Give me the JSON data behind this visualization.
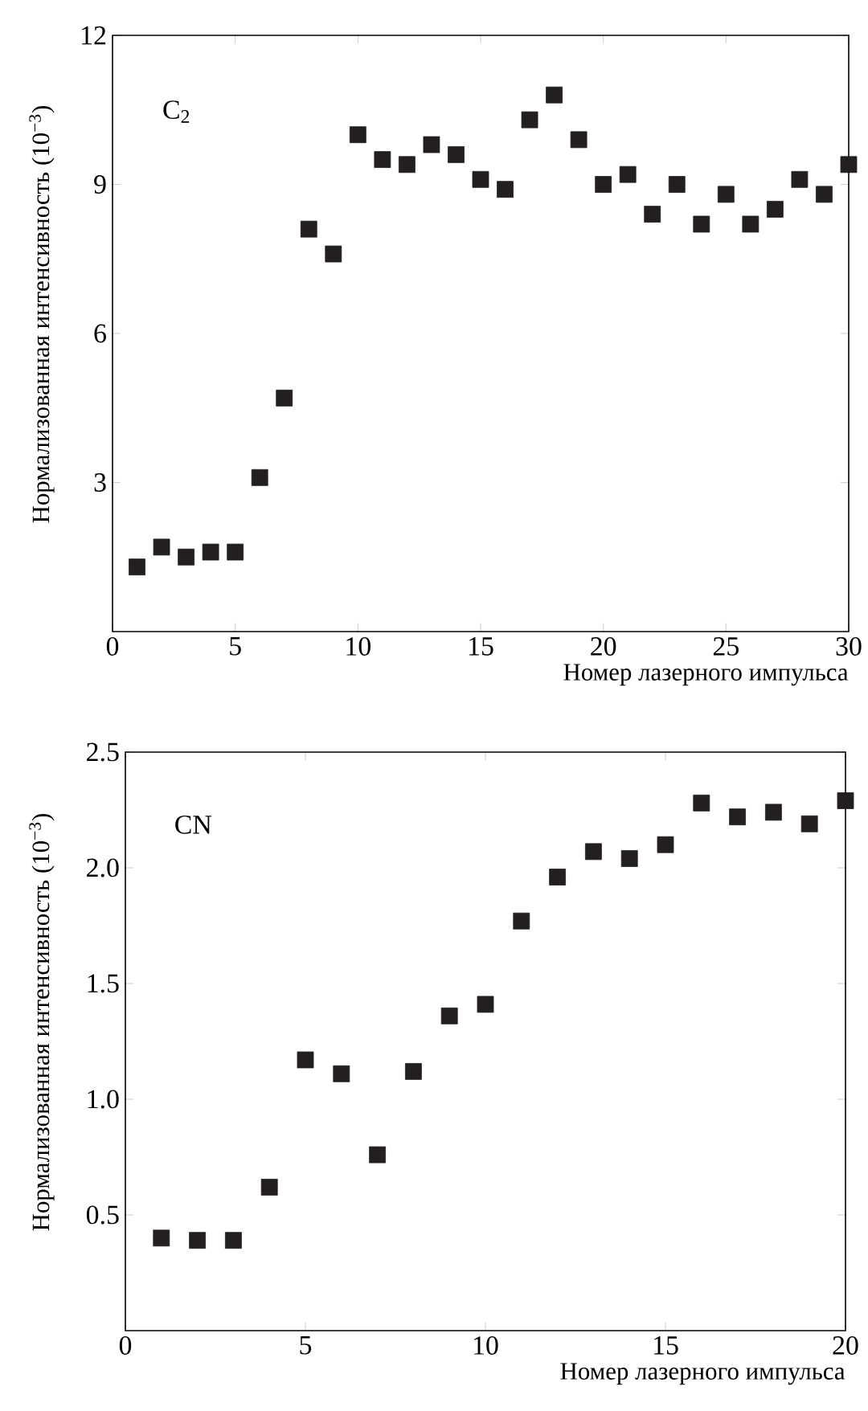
{
  "chart_data": [
    {
      "type": "scatter",
      "xlabel": "Номер лазерного импульса",
      "ylabel": "Нормализованная интенсивность (10$^{−3}$)",
      "annotations": [
        "C$_{2}$"
      ],
      "x": [
        1,
        2,
        3,
        4,
        5,
        6,
        7,
        8,
        9,
        10,
        11,
        12,
        13,
        14,
        15,
        16,
        17,
        18,
        19,
        20,
        21,
        22,
        23,
        24,
        25,
        26,
        27,
        28,
        29,
        30
      ],
      "values": [
        1.3,
        1.7,
        1.5,
        1.6,
        1.6,
        3.1,
        4.7,
        8.1,
        7.6,
        10.0,
        9.5,
        9.4,
        9.8,
        9.6,
        9.1,
        8.9,
        10.3,
        10.8,
        9.9,
        9.0,
        9.2,
        8.4,
        9.0,
        8.2,
        8.8,
        8.2,
        8.5,
        9.1,
        8.8,
        9.4
      ],
      "color": "#231f20",
      "marker": "square",
      "xlim": [
        0,
        30
      ],
      "ylim": [
        0,
        12
      ],
      "xticks": [
        0,
        5,
        10,
        15,
        20,
        25,
        30
      ],
      "yticks": [
        3,
        6,
        9,
        12
      ]
    },
    {
      "type": "scatter",
      "xlabel": "Номер лазерного импульса",
      "ylabel": "Нормализованная интенсивность (10$^{−3}$)",
      "annotations": [
        "CN"
      ],
      "x": [
        1,
        2,
        3,
        4,
        5,
        6,
        7,
        8,
        9,
        10,
        11,
        12,
        13,
        14,
        15,
        16,
        17,
        18,
        19,
        20
      ],
      "values": [
        0.4,
        0.39,
        0.39,
        0.62,
        1.17,
        1.11,
        0.76,
        1.12,
        1.36,
        1.41,
        1.77,
        1.96,
        2.07,
        2.04,
        2.1,
        2.28,
        2.22,
        2.24,
        2.19,
        2.29
      ],
      "color": "#231f20",
      "marker": "square",
      "xlim": [
        0,
        20
      ],
      "ylim": [
        0,
        2.5
      ],
      "xticks": [
        0,
        5,
        10,
        15,
        20
      ],
      "yticks": [
        0.5,
        {
          "value": 1.0,
          "label": "1.0"
        },
        1.5,
        {
          "value": 2.0,
          "label": "2.0"
        },
        2.5
      ]
    }
  ]
}
